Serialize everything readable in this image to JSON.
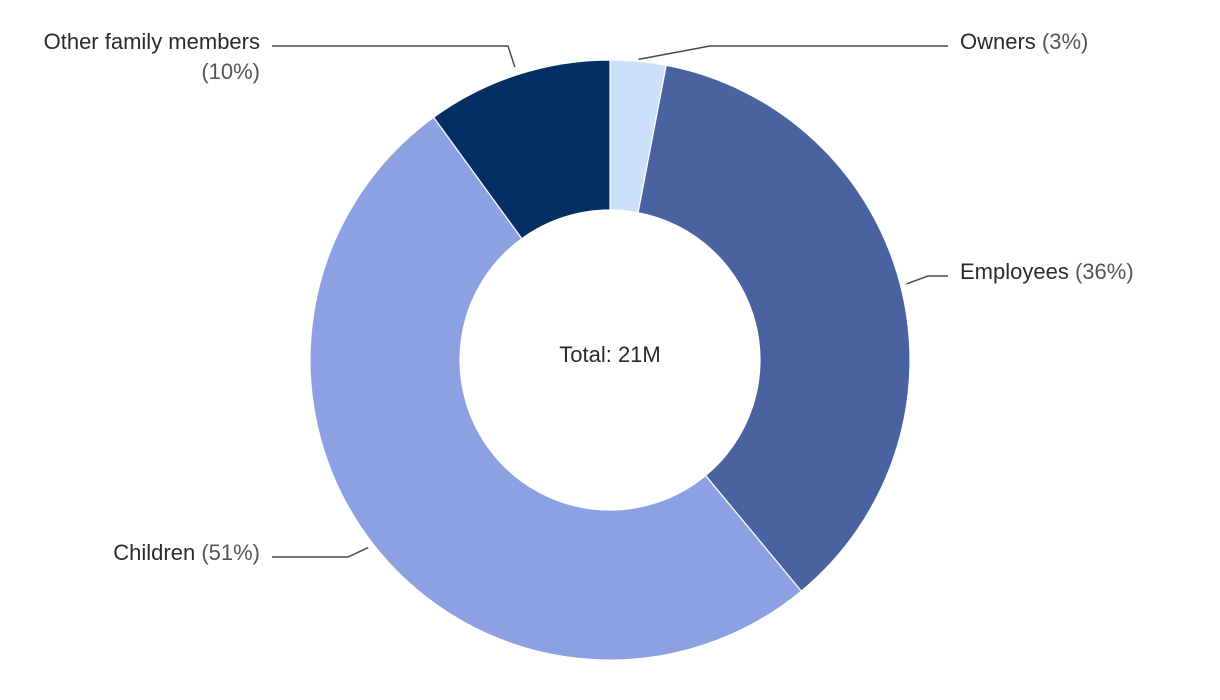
{
  "chart_data": {
    "type": "pie",
    "donut": true,
    "center_text": "Total: 21M",
    "slices": [
      {
        "name": "Owners",
        "pct_label": "(3%)",
        "value": 3,
        "color": "#cce0fb"
      },
      {
        "name": "Employees",
        "pct_label": "(36%)",
        "value": 36,
        "color": "#4a62a0"
      },
      {
        "name": "Children",
        "pct_label": "(51%)",
        "value": 51,
        "color": "#8ca0e2"
      },
      {
        "name": "Other family members",
        "pct_label": "(10%)",
        "value": 10,
        "color": "#032f63"
      }
    ],
    "legend": "none"
  }
}
